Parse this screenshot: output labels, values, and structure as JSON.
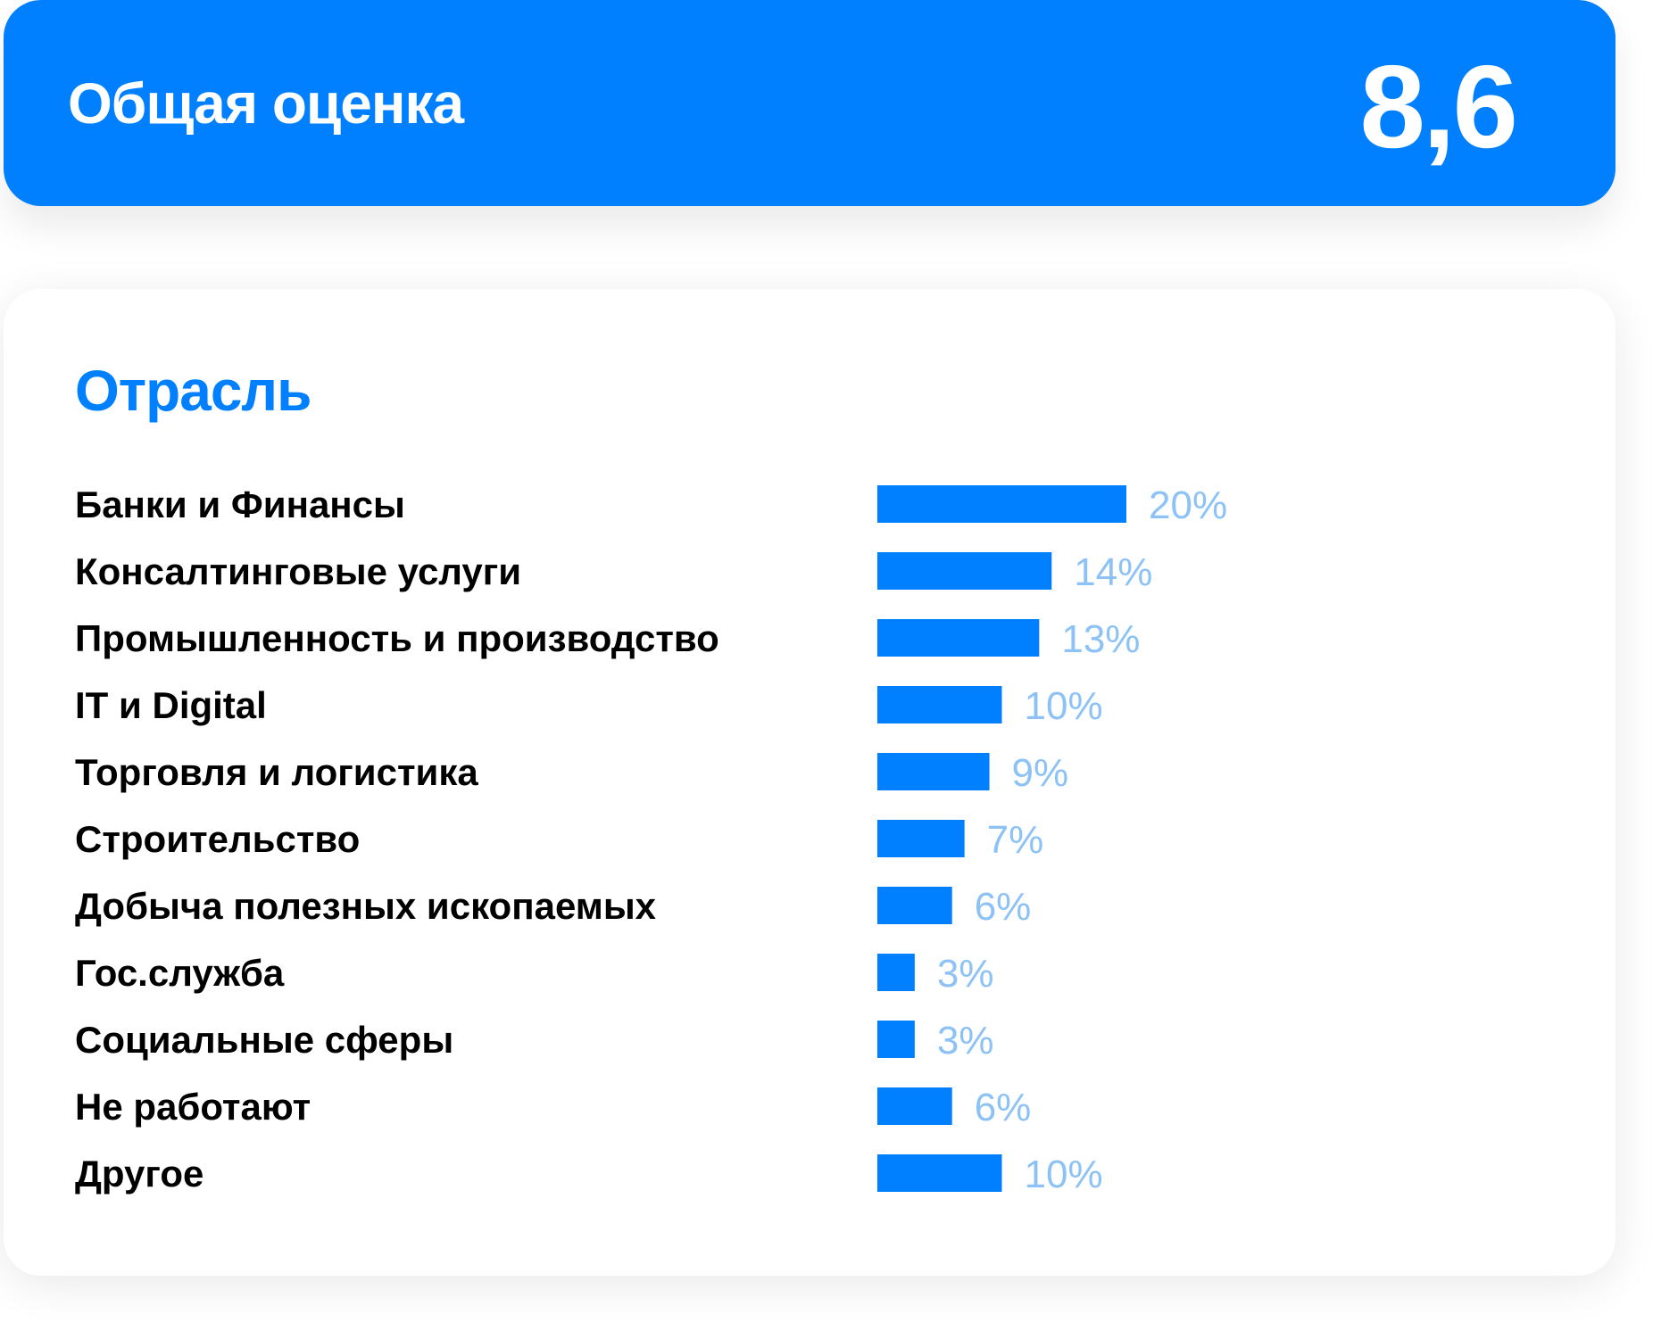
{
  "score": {
    "title": "Общая оценка",
    "value": "8,6"
  },
  "industry": {
    "title": "Отрасль"
  },
  "colors": {
    "accent": "#0080FF",
    "value_label": "#8CC2F5",
    "category_label": "#000000"
  },
  "chart_data": {
    "type": "bar",
    "orientation": "horizontal",
    "title": "Отрасль",
    "categories": [
      "Банки и Финансы",
      "Консалтинговые услуги",
      "Промышленность и производство",
      "IT и Digital",
      "Торговля и логистика",
      "Строительство",
      "Добыча полезных ископаемых",
      "Гос.служба",
      "Социальные сферы",
      "Не работают",
      "Другое"
    ],
    "values": [
      20,
      14,
      13,
      10,
      9,
      7,
      6,
      3,
      3,
      6,
      10
    ],
    "value_labels": [
      "20%",
      "14%",
      "13%",
      "10%",
      "9%",
      "7%",
      "6%",
      "3%",
      "3%",
      "6%",
      "10%"
    ],
    "unit": "%",
    "xlim": [
      0,
      20
    ],
    "grid": false,
    "legend": "none"
  }
}
